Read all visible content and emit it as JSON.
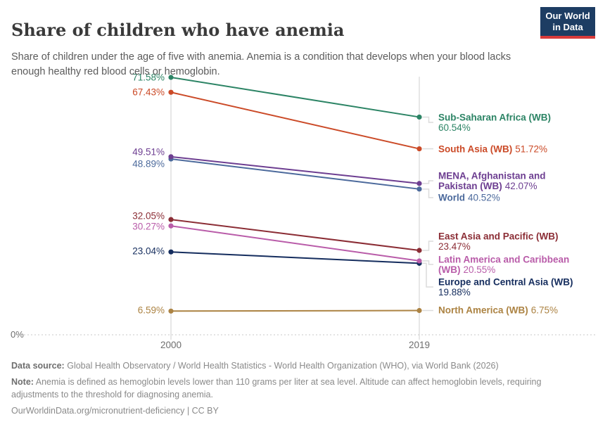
{
  "header": {
    "title": "Share of children who have anemia",
    "subtitle": "Share of children under the age of five with anemia. Anemia is a condition that develops when your blood lacks enough healthy red blood cells or hemoglobin.",
    "logo": {
      "line1": "Our World",
      "line2": "in Data",
      "bg_color": "#1d3d63",
      "accent_color": "#d93b3b"
    }
  },
  "chart_data": {
    "type": "line",
    "variant": "slope",
    "x": [
      2000,
      2019
    ],
    "x_tick_labels": [
      "2000",
      "2019"
    ],
    "y_baseline_label": "0%",
    "ylim": [
      0,
      71.58
    ],
    "unit": "%",
    "grid": "baseline-dashed-only",
    "legend_position": "right-inline-labels",
    "series": [
      {
        "name": "Sub-Saharan Africa (WB)",
        "name_lines": [
          "Sub-Saharan Africa (WB)"
        ],
        "values": [
          71.58,
          60.54
        ],
        "color": "#2C8465",
        "value_on_new_line": true
      },
      {
        "name": "South Asia (WB)",
        "name_lines": [
          "South Asia (WB)"
        ],
        "values": [
          67.43,
          51.72
        ],
        "color": "#CB4A27",
        "value_on_new_line": false
      },
      {
        "name": "MENA, Afghanistan and Pakistan (WB)",
        "name_lines": [
          "MENA, Afghanistan and",
          "Pakistan (WB)"
        ],
        "values": [
          49.51,
          42.07
        ],
        "color": "#6D3E91",
        "value_on_new_line": false
      },
      {
        "name": "World",
        "name_lines": [
          "World"
        ],
        "values": [
          48.89,
          40.52
        ],
        "color": "#4C6A9C",
        "value_on_new_line": false
      },
      {
        "name": "East Asia and Pacific (WB)",
        "name_lines": [
          "East Asia and Pacific (WB)"
        ],
        "values": [
          32.05,
          23.47
        ],
        "color": "#8B2D35",
        "value_on_new_line": true
      },
      {
        "name": "Latin America and Caribbean (WB)",
        "name_lines": [
          "Latin America and Caribbean",
          "(WB)"
        ],
        "values": [
          30.27,
          20.55
        ],
        "color": "#B95CA9",
        "value_on_new_line": false
      },
      {
        "name": "Europe and Central Asia (WB)",
        "name_lines": [
          "Europe and Central Asia (WB)"
        ],
        "values": [
          23.04,
          19.88
        ],
        "color": "#152D5E",
        "value_on_new_line": true
      },
      {
        "name": "North America (WB)",
        "name_lines": [
          "North America (WB)"
        ],
        "values": [
          6.59,
          6.75
        ],
        "color": "#AC8343",
        "value_on_new_line": false
      }
    ]
  },
  "footer": {
    "data_source_label": "Data source:",
    "data_source": "Global Health Observatory / World Health Statistics - World Health Organization (WHO), via World Bank (2026)",
    "note_label": "Note:",
    "note": "Anemia is defined as hemoglobin levels lower than 110 grams per liter at sea level. Altitude can affect hemoglobin levels, requiring adjustments to the threshold for diagnosing anemia.",
    "link": "OurWorldinData.org/micronutrient-deficiency | CC BY"
  }
}
